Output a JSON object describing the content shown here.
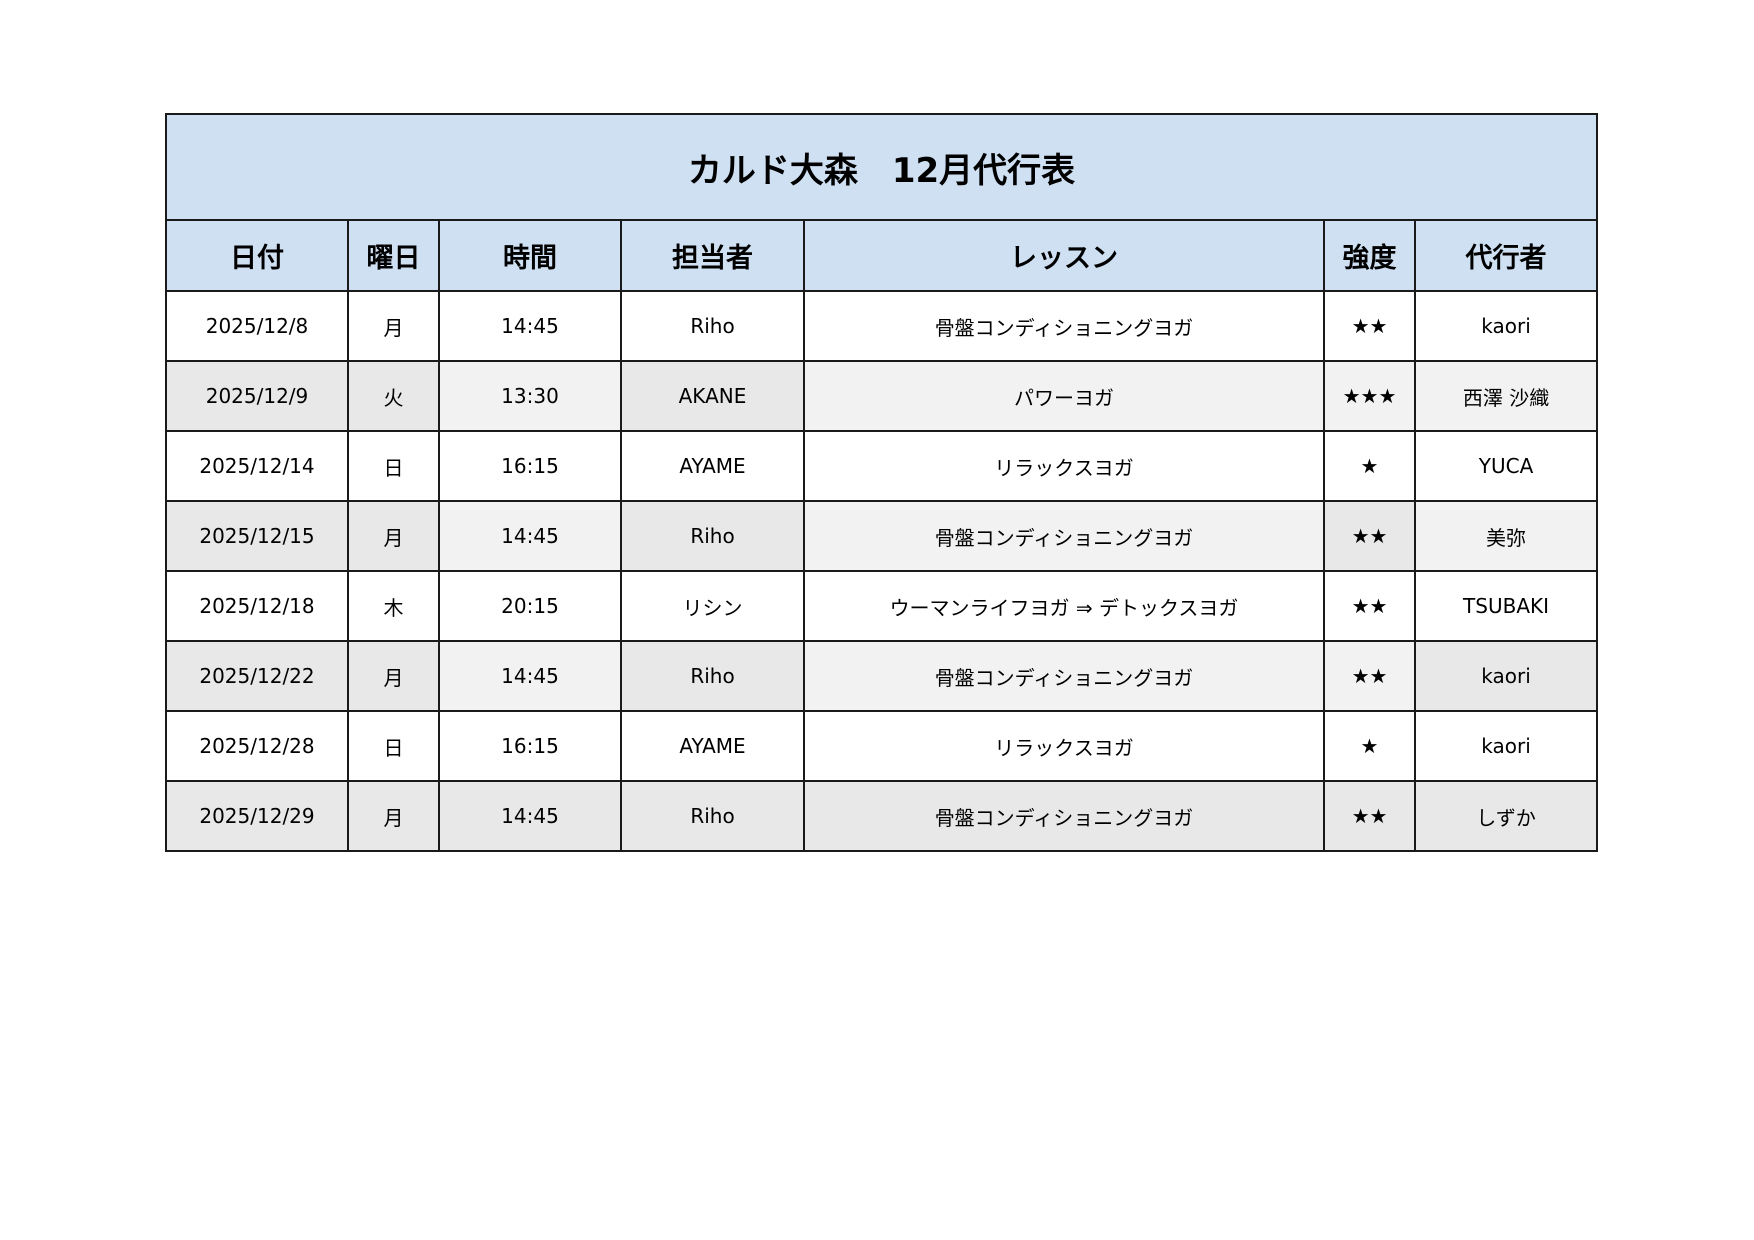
{
  "title": "カルド大森　12月代行表",
  "colors": {
    "header_bg": "#cfe0f3",
    "shade_dark": "#e8e8e8",
    "shade_light": "#f2f2f2",
    "white": "#ffffff"
  },
  "columns": [
    "日付",
    "曜日",
    "時間",
    "担当者",
    "レッスン",
    "強度",
    "代行者"
  ],
  "rows": [
    {
      "cells": [
        "2025/12/8",
        "月",
        "14:45",
        "Riho",
        "骨盤コンディショニングヨガ",
        "★★",
        "kaori"
      ],
      "shades": "wwwwwww"
    },
    {
      "cells": [
        "2025/12/9",
        "火",
        "13:30",
        "AKANE",
        "パワーヨガ",
        "★★★",
        "西澤 沙織"
      ],
      "shades": "ddldlll"
    },
    {
      "cells": [
        "2025/12/14",
        "日",
        "16:15",
        "AYAME",
        "リラックスヨガ",
        "★",
        "YUCA"
      ],
      "shades": "wwwwwww"
    },
    {
      "cells": [
        "2025/12/15",
        "月",
        "14:45",
        "Riho",
        "骨盤コンディショニングヨガ",
        "★★",
        "美弥"
      ],
      "shades": "ddldldl"
    },
    {
      "cells": [
        "2025/12/18",
        "木",
        "20:15",
        "リシン",
        "ウーマンライフヨガ ⇒ デトックスヨガ",
        "★★",
        "TSUBAKI"
      ],
      "shades": "wwwwwww"
    },
    {
      "cells": [
        "2025/12/22",
        "月",
        "14:45",
        "Riho",
        "骨盤コンディショニングヨガ",
        "★★",
        "kaori"
      ],
      "shades": "ddldlld"
    },
    {
      "cells": [
        "2025/12/28",
        "日",
        "16:15",
        "AYAME",
        "リラックスヨガ",
        "★",
        "kaori"
      ],
      "shades": "wwwwwww"
    },
    {
      "cells": [
        "2025/12/29",
        "月",
        "14:45",
        "Riho",
        "骨盤コンディショニングヨガ",
        "★★",
        "しずか"
      ],
      "shades": "ddddddd"
    }
  ]
}
